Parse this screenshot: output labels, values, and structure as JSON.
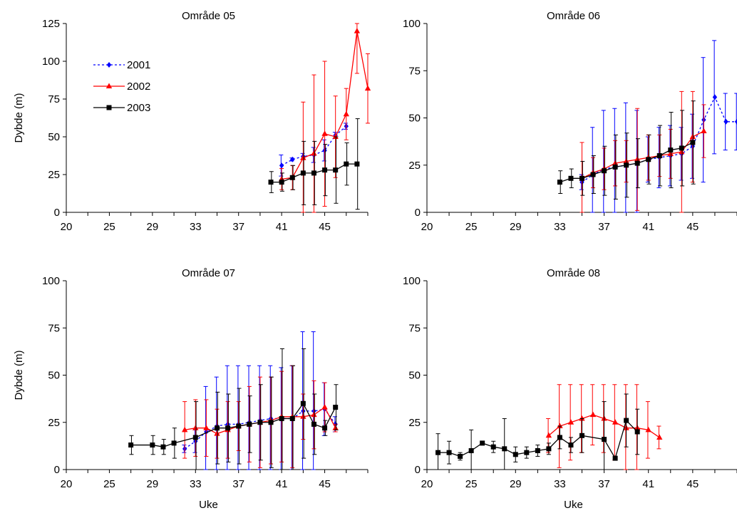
{
  "colors": {
    "s2001": "#0000ff",
    "s2002": "#ff0000",
    "s2003": "#000000"
  },
  "chart_data": [
    {
      "type": "line",
      "title": "Område 05",
      "ylabel": "Dybde (m)",
      "xlabel": "",
      "xlim": [
        20,
        48
      ],
      "ylim": [
        0,
        125
      ],
      "xticklabels": [
        "20",
        "25",
        "29",
        "33",
        "37",
        "41",
        "45"
      ],
      "yticks": [
        0,
        25,
        50,
        75,
        100,
        125
      ],
      "legend": {
        "placement": "top-left",
        "entries": [
          "2001",
          "2002",
          "2003"
        ]
      },
      "series": [
        {
          "name": "2001",
          "marker": "diamond",
          "dashed": true,
          "x": [
            40,
            41,
            42,
            43,
            44,
            45,
            46
          ],
          "y": [
            31,
            35,
            37,
            38,
            41,
            51,
            57
          ],
          "err": [
            7,
            1,
            2,
            5,
            7,
            2,
            2
          ]
        },
        {
          "name": "2002",
          "marker": "triangle",
          "dashed": false,
          "x": [
            40,
            41,
            42,
            43,
            44,
            45,
            46,
            47,
            48
          ],
          "y": [
            22,
            23,
            36,
            39,
            52,
            50,
            65,
            120,
            82
          ],
          "err": [
            7,
            8,
            37,
            52,
            48,
            27,
            17,
            28,
            23
          ]
        },
        {
          "name": "2003",
          "marker": "square",
          "dashed": false,
          "x": [
            39,
            40,
            41,
            42,
            43,
            44,
            45,
            46,
            47
          ],
          "y": [
            20,
            20,
            23,
            26,
            26,
            28,
            28,
            32,
            32
          ],
          "err": [
            7,
            6,
            8,
            21,
            21,
            17,
            22,
            14,
            30
          ]
        }
      ]
    },
    {
      "type": "line",
      "title": "Område 06",
      "ylabel": "",
      "xlabel": "",
      "xlim": [
        20,
        48
      ],
      "ylim": [
        0,
        100
      ],
      "xticklabels": [
        "20",
        "25",
        "29",
        "33",
        "37",
        "41",
        "45"
      ],
      "yticks": [
        0,
        25,
        50,
        75,
        100
      ],
      "series": [
        {
          "name": "2001",
          "marker": "diamond",
          "dashed": true,
          "x": [
            34,
            35,
            36,
            37,
            38,
            39,
            40,
            41,
            42,
            43,
            44,
            45,
            46,
            47,
            48
          ],
          "y": [
            16,
            20,
            23,
            24,
            25,
            26,
            28,
            29,
            30,
            31,
            35,
            49,
            61,
            48,
            48
          ],
          "err": [
            4,
            25,
            31,
            31,
            33,
            28,
            12,
            16,
            16,
            14,
            17,
            33,
            30,
            15,
            15
          ]
        },
        {
          "name": "2002",
          "marker": "triangle",
          "dashed": false,
          "x": [
            34,
            35,
            36,
            37,
            38,
            39,
            40,
            41,
            42,
            43,
            44,
            45
          ],
          "y": [
            18,
            21,
            23,
            26,
            27,
            28,
            29,
            30,
            31,
            32,
            40,
            43
          ],
          "err": [
            19,
            8,
            11,
            12,
            11,
            27,
            12,
            11,
            13,
            32,
            24,
            14
          ]
        },
        {
          "name": "2003",
          "marker": "square",
          "dashed": false,
          "x": [
            32,
            33,
            34,
            35,
            36,
            37,
            38,
            39,
            40,
            41,
            42,
            43,
            44
          ],
          "y": [
            16,
            18,
            18,
            20,
            22,
            24,
            25,
            26,
            28,
            30,
            33,
            34,
            37
          ],
          "err": [
            6,
            5,
            9,
            10,
            13,
            17,
            17,
            13,
            13,
            16,
            20,
            20,
            22
          ]
        }
      ]
    },
    {
      "type": "line",
      "title": "Område 07",
      "ylabel": "Dybde (m)",
      "xlabel": "Uke",
      "xlim": [
        20,
        48
      ],
      "ylim": [
        0,
        100
      ],
      "xticklabels": [
        "20",
        "25",
        "29",
        "33",
        "37",
        "41",
        "45"
      ],
      "yticks": [
        0,
        25,
        50,
        75,
        100
      ],
      "series": [
        {
          "name": "2001",
          "marker": "diamond",
          "dashed": true,
          "x": [
            31,
            32,
            33,
            34,
            35,
            36,
            37,
            38,
            39,
            40,
            41,
            42,
            43,
            44,
            45
          ],
          "y": [
            11,
            15,
            20,
            23,
            24,
            24,
            25,
            26,
            27,
            27,
            27,
            31,
            31,
            32,
            24
          ],
          "err": [
            2,
            6,
            24,
            26,
            31,
            31,
            30,
            29,
            28,
            27,
            28,
            42,
            42,
            14,
            4
          ]
        },
        {
          "name": "2002",
          "marker": "triangle",
          "dashed": false,
          "x": [
            31,
            32,
            33,
            34,
            35,
            36,
            37,
            38,
            39,
            40,
            41,
            42,
            43,
            44,
            45
          ],
          "y": [
            21,
            22,
            22,
            19,
            21,
            23,
            24,
            25,
            26,
            28,
            28,
            28,
            29,
            33,
            22
          ],
          "err": [
            15,
            15,
            15,
            13,
            15,
            13,
            20,
            24,
            23,
            24,
            27,
            12,
            18,
            13,
            2
          ]
        },
        {
          "name": "2003",
          "marker": "square",
          "dashed": false,
          "x": [
            26,
            28,
            29,
            30,
            32,
            34,
            35,
            36,
            37,
            38,
            39,
            40,
            41,
            42,
            43,
            44,
            45
          ],
          "y": [
            13,
            13,
            12,
            14,
            17,
            22,
            22,
            23,
            24,
            25,
            25,
            27,
            27,
            35,
            24,
            22,
            33
          ],
          "err": [
            5,
            5,
            4,
            8,
            19,
            19,
            18,
            20,
            15,
            20,
            24,
            37,
            28,
            29,
            16,
            4,
            12
          ]
        }
      ]
    },
    {
      "type": "line",
      "title": "Område 08",
      "ylabel": "",
      "xlabel": "Uke",
      "xlim": [
        20,
        48
      ],
      "ylim": [
        0,
        100
      ],
      "xticklabels": [
        "20",
        "25",
        "29",
        "33",
        "37",
        "41",
        "45"
      ],
      "yticks": [
        0,
        25,
        50,
        75,
        100
      ],
      "series": [
        {
          "name": "2002",
          "marker": "triangle",
          "dashed": false,
          "x": [
            31,
            32,
            33,
            34,
            35,
            36,
            37,
            38,
            39,
            40,
            41
          ],
          "y": [
            18,
            23,
            25,
            27,
            29,
            27,
            25,
            22,
            22,
            21,
            17
          ],
          "err": [
            9,
            22,
            20,
            18,
            16,
            18,
            20,
            23,
            23,
            15,
            6
          ]
        },
        {
          "name": "2003",
          "marker": "square",
          "dashed": false,
          "x": [
            21,
            22,
            23,
            24,
            25,
            26,
            27,
            28,
            29,
            30,
            31,
            32,
            33,
            34,
            36,
            37,
            38,
            39
          ],
          "y": [
            9,
            9,
            7,
            10,
            14,
            12,
            11,
            8,
            9,
            10,
            11,
            17,
            13,
            18,
            16,
            6,
            26,
            20
          ],
          "err": [
            10,
            6,
            2,
            11,
            1,
            3,
            16,
            4,
            3,
            3,
            3,
            6,
            4,
            9,
            20,
            1,
            14,
            12
          ]
        }
      ]
    }
  ]
}
